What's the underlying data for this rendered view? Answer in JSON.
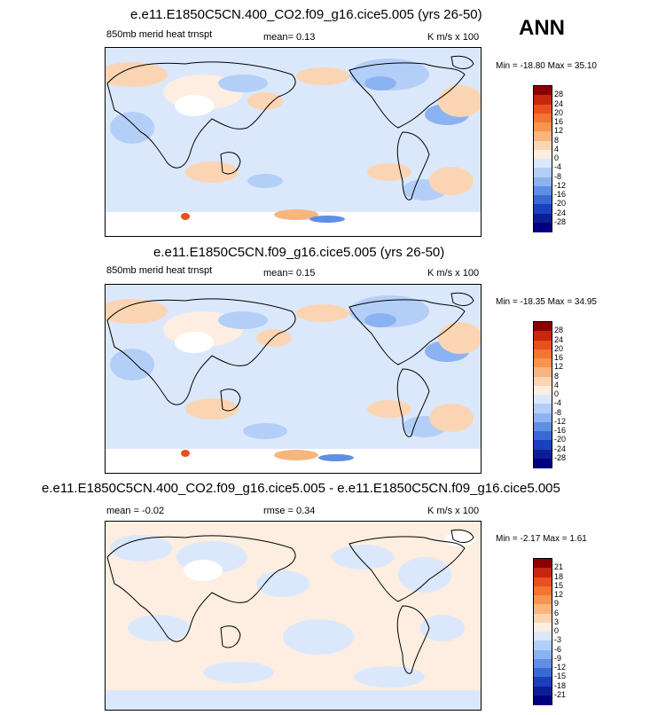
{
  "season": "ANN",
  "panels": [
    {
      "title": "e.e11.E1850C5CN.400_CO2.f09_g16.cice5.005 (yrs 26-50)",
      "field": "850mb merid heat trnspt",
      "stat": "mean=   0.13",
      "units": "K m/s x 100",
      "minmax": "Min = -18.80 Max =  35.10",
      "levels": [
        "28",
        "24",
        "20",
        "16",
        "12",
        "8",
        "4",
        "0",
        "-4",
        "-8",
        "-12",
        "-16",
        "-20",
        "-24",
        "-28"
      ]
    },
    {
      "title": "e.e11.E1850C5CN.f09_g16.cice5.005 (yrs 26-50)",
      "field": "850mb merid heat trnspt",
      "stat": "mean=   0.15",
      "units": "K m/s x 100",
      "minmax": "Min = -18.35 Max =  34.95",
      "levels": [
        "28",
        "24",
        "20",
        "16",
        "12",
        "8",
        "4",
        "0",
        "-4",
        "-8",
        "-12",
        "-16",
        "-20",
        "-24",
        "-28"
      ]
    },
    {
      "title": "e.e11.E1850C5CN.400_CO2.f09_g16.cice5.005 - e.e11.E1850C5CN.f09_g16.cice5.005",
      "field": "mean =  -0.02",
      "stat": "rmse =   0.34",
      "units": "K m/s x 100",
      "minmax": "Min =  -2.17 Max =   1.61",
      "levels": [
        "21",
        "18",
        "15",
        "12",
        "9",
        "6",
        "3",
        "0",
        "-3",
        "-6",
        "-9",
        "-12",
        "-15",
        "-18",
        "-21"
      ]
    }
  ],
  "chart_data": {
    "type": "heatmap",
    "colors": [
      "#8b0000",
      "#c8260f",
      "#e8501e",
      "#f47432",
      "#f7944f",
      "#f9b57e",
      "#fbd5b3",
      "#fdeee1",
      "#dbe8fb",
      "#b3cff8",
      "#8bb3f1",
      "#5f8fe4",
      "#3a69d6",
      "#1c3fbe",
      "#0b1f95",
      "#000080"
    ]
  }
}
